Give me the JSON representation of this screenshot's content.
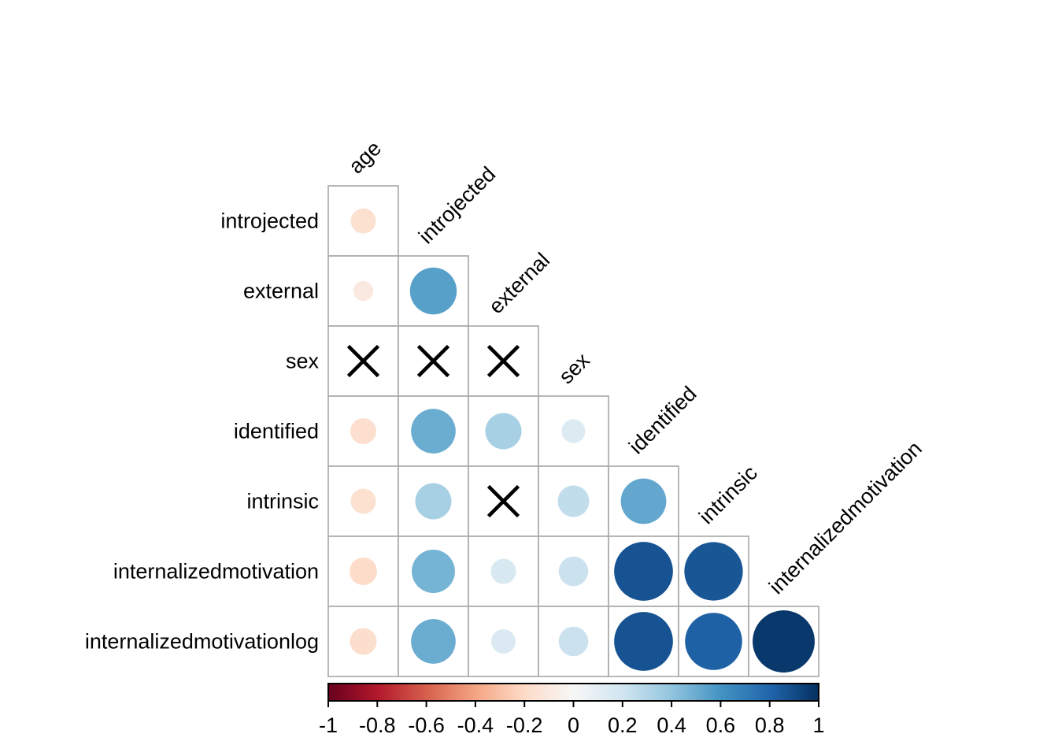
{
  "chart_data": {
    "type": "heatmap",
    "subtype": "correlogram-lower-triangle-circles",
    "title": "",
    "variables": [
      "age",
      "introjected",
      "external",
      "sex",
      "identified",
      "intrinsic",
      "internalizedmotivation",
      "internalizedmotivationlog"
    ],
    "row_labels": [
      "introjected",
      "external",
      "sex",
      "identified",
      "intrinsic",
      "internalizedmotivation",
      "internalizedmotivationlog"
    ],
    "col_labels": [
      "age",
      "introjected",
      "external",
      "sex",
      "identified",
      "intrinsic",
      "internalizedmotivation"
    ],
    "insignificant_marker": "X",
    "matrix_note": "lower triangle; rows x cols; 'X' = non-significant (crossed out)",
    "values": [
      [
        -0.16
      ],
      [
        -0.1,
        0.55
      ],
      [
        "X",
        "X",
        "X"
      ],
      [
        -0.17,
        0.5,
        0.33,
        0.14
      ],
      [
        -0.16,
        0.33,
        "X",
        0.25,
        0.52
      ],
      [
        -0.19,
        0.47,
        0.16,
        0.22,
        0.87,
        0.86
      ],
      [
        -0.18,
        0.5,
        0.15,
        0.22,
        0.87,
        0.82,
        0.97
      ]
    ],
    "colorbar": {
      "min": -1,
      "max": 1,
      "tick_labels": [
        "-1",
        "-0.8",
        "-0.6",
        "-0.4",
        "-0.2",
        "0",
        "0.2",
        "0.4",
        "0.6",
        "0.8",
        "1"
      ],
      "palette_rdbu": [
        "#67001F",
        "#B2182B",
        "#D6604D",
        "#F4A582",
        "#FDDBC7",
        "#F7F7F7",
        "#D1E5F0",
        "#92C5DE",
        "#4393C3",
        "#2166AC",
        "#053061"
      ]
    },
    "style": {
      "grid_color": "#ababab",
      "mark_color": "#000000",
      "background": "#ffffff",
      "circle_scale": "diameter = 0.9 * sqrt(|r|) * cell"
    },
    "legend_position": "bottom"
  }
}
